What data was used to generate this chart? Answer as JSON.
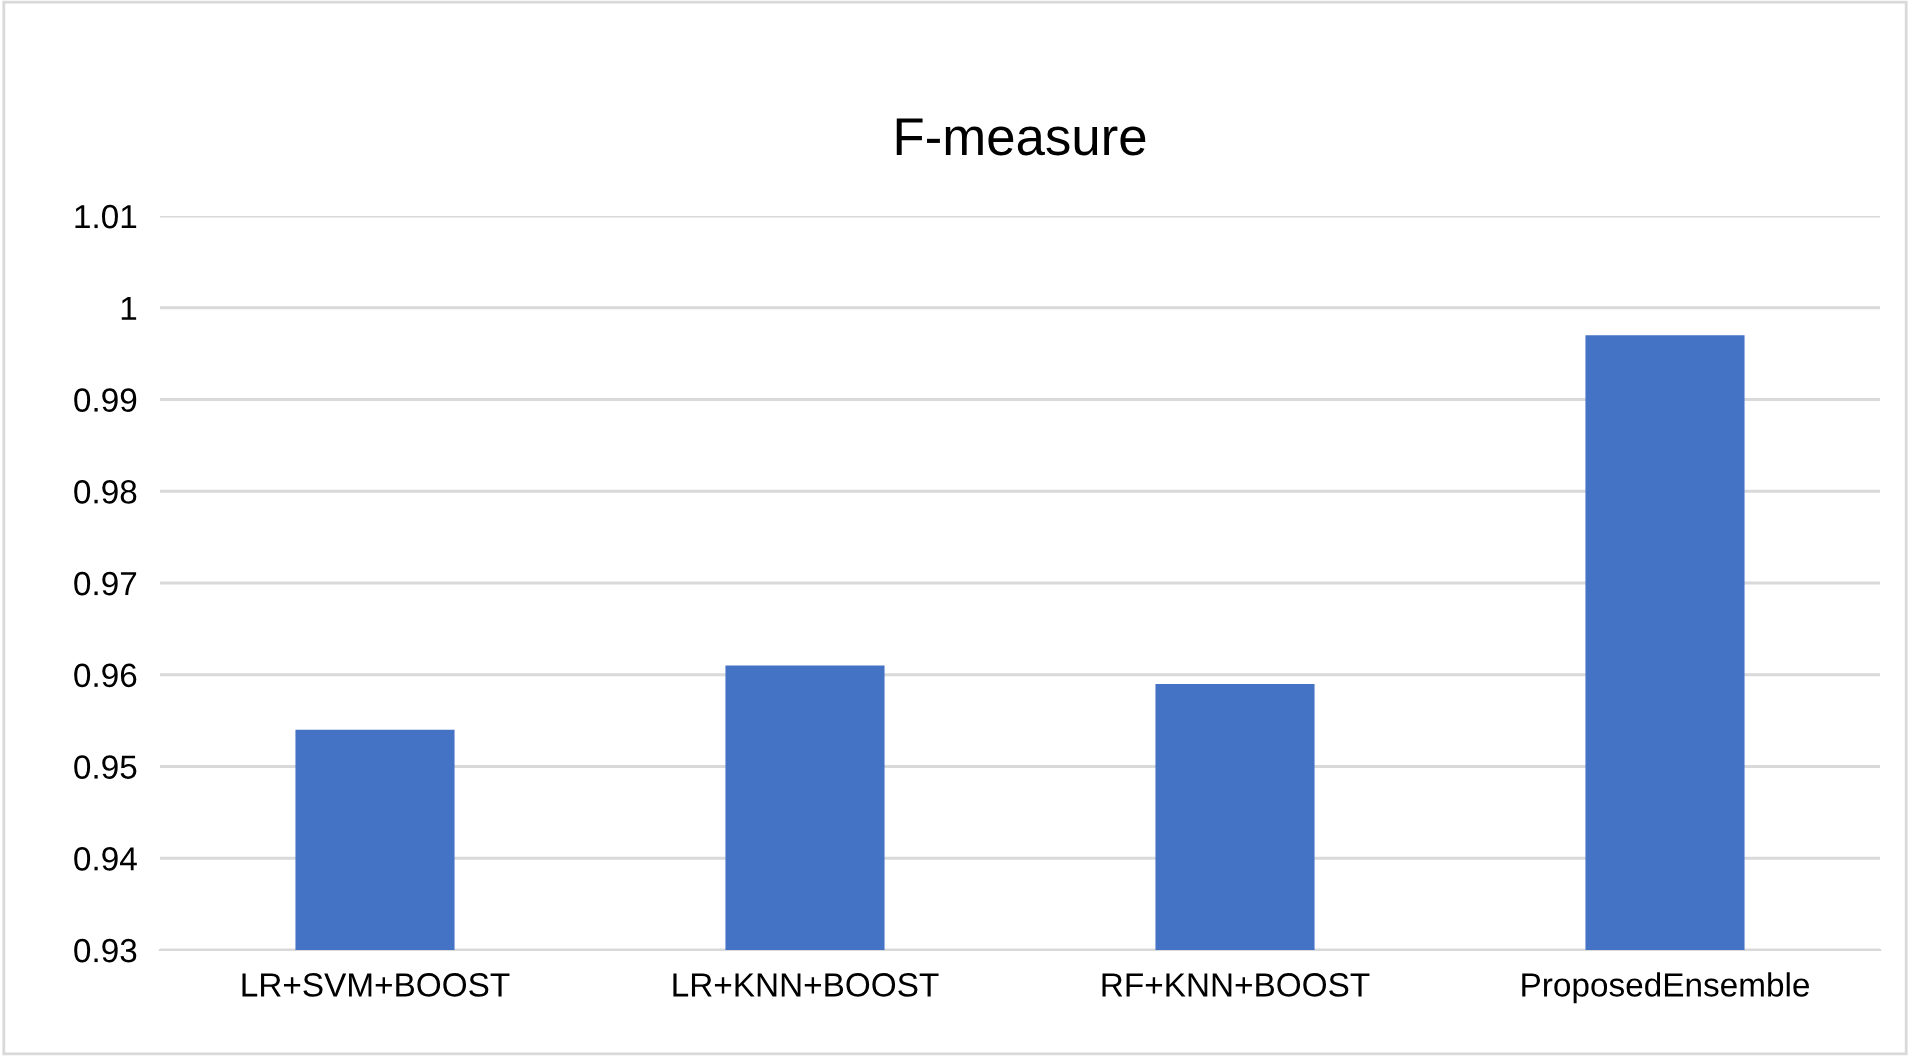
{
  "chart_data": {
    "type": "bar",
    "title": "F-measure",
    "categories": [
      "LR+SVM+BOOST",
      "LR+KNN+BOOST",
      "RF+KNN+BOOST",
      "ProposedEnsemble"
    ],
    "values": [
      0.954,
      0.961,
      0.959,
      0.997
    ],
    "color": "#4472c4",
    "ylim": [
      0.93,
      1.01
    ],
    "yticks": [
      {
        "value": 0.93,
        "label": "0.93"
      },
      {
        "value": 0.94,
        "label": "0.94"
      },
      {
        "value": 0.95,
        "label": "0.95"
      },
      {
        "value": 0.96,
        "label": "0.96"
      },
      {
        "value": 0.97,
        "label": "0.97"
      },
      {
        "value": 0.98,
        "label": "0.98"
      },
      {
        "value": 0.99,
        "label": "0.99"
      },
      {
        "value": 1,
        "label": "1"
      },
      {
        "value": 1.01,
        "label": "1.01"
      }
    ],
    "grid": "y",
    "legend": false
  }
}
